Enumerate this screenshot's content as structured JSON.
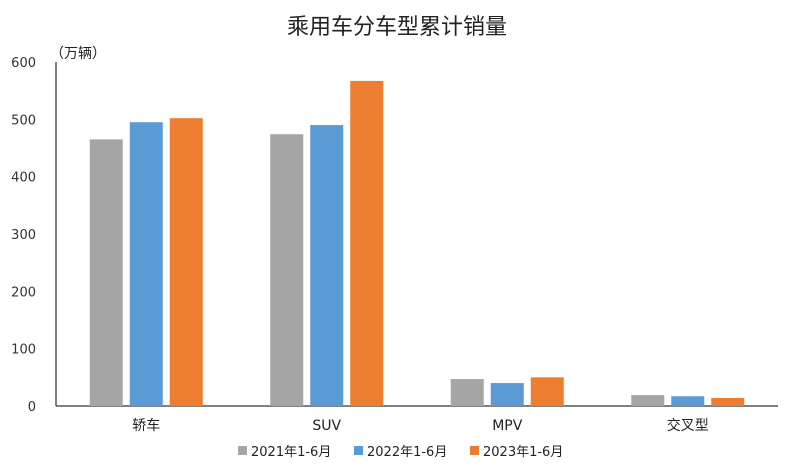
{
  "chart_data": {
    "type": "bar",
    "title": "乘用车分车型累计销量",
    "ylabel": "（万辆）",
    "xlabel": "",
    "categories": [
      "轿车",
      "SUV",
      "MPV",
      "交叉型"
    ],
    "series": [
      {
        "name": "2021年1-6月",
        "color": "#a5a5a5",
        "values": [
          465,
          474,
          47,
          19
        ]
      },
      {
        "name": "2022年1-6月",
        "color": "#5b9bd5",
        "values": [
          495,
          490,
          40,
          17
        ]
      },
      {
        "name": "2023年1-6月",
        "color": "#ed7d31",
        "values": [
          502,
          567,
          50,
          14
        ]
      }
    ],
    "ylim": [
      0,
      600
    ],
    "yticks": [
      "0",
      "100",
      "200",
      "300",
      "400",
      "500",
      "600"
    ],
    "grid": false,
    "legend": "bottom"
  }
}
